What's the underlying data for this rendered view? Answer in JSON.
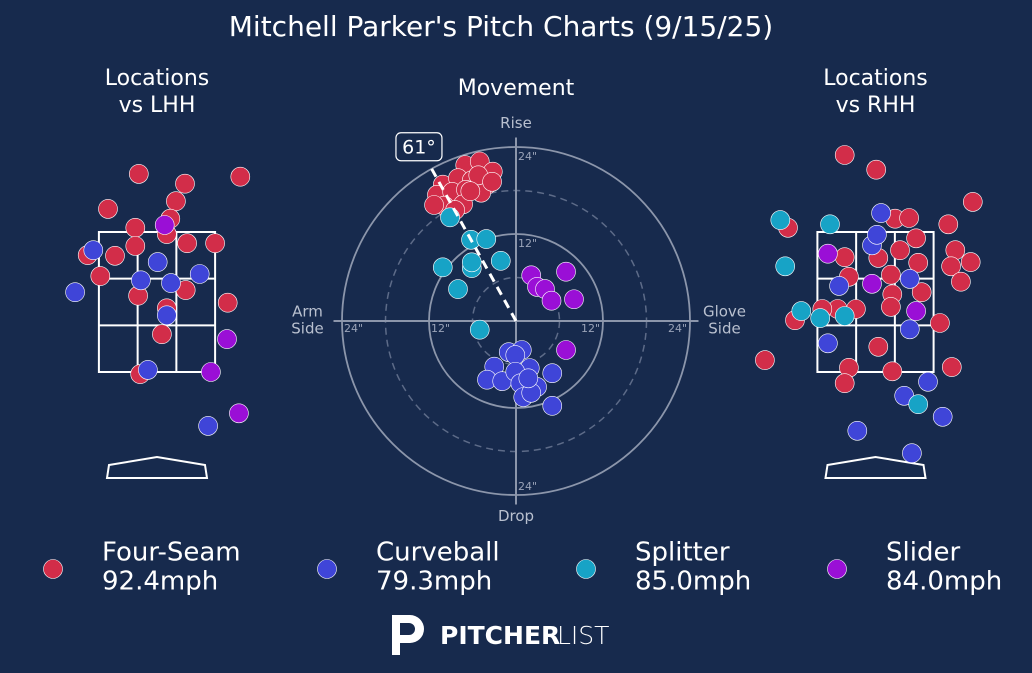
{
  "title": "Mitchell Parker's Pitch Charts (9/15/25)",
  "legend": [
    {
      "name": "Four-Seam",
      "color": "#d22d49",
      "velocity": 92.4,
      "velocity_label": "92.4mph"
    },
    {
      "name": "Curveball",
      "color": "#3f45d8",
      "velocity": 79.3,
      "velocity_label": "79.3mph"
    },
    {
      "name": "Splitter",
      "color": "#17a3c6",
      "velocity": 85.0,
      "velocity_label": "85.0mph"
    },
    {
      "name": "Slider",
      "color": "#9a0fd6",
      "velocity": 84.0,
      "velocity_label": "84.0mph"
    }
  ],
  "footer": {
    "logo_bold": "PITCHER",
    "logo_light": "LIST"
  },
  "chart_data": [
    {
      "type": "scatter",
      "title": [
        "Locations",
        "vs LHH"
      ],
      "strike_zone": true,
      "xlim": [
        -1.6,
        1.6
      ],
      "ylim": [
        0,
        5
      ],
      "series": [
        {
          "color": "#d22d49",
          "x": [
            -0.26,
            0.4,
            1.19,
            -0.7,
            0.27,
            0.19,
            -0.31,
            0.14,
            0.43,
            0.83,
            -0.31,
            -0.99,
            -0.6,
            -0.81,
            0.41,
            -0.27,
            1.01,
            0.14,
            0.07,
            -0.24
          ],
          "y": [
            4.33,
            4.19,
            4.29,
            3.83,
            3.94,
            3.69,
            3.56,
            3.47,
            3.34,
            3.34,
            3.3,
            3.17,
            3.16,
            2.87,
            2.67,
            2.59,
            2.49,
            2.41,
            2.04,
            1.47
          ]
        },
        {
          "color": "#3f45d8",
          "x": [
            -0.91,
            0.01,
            0.61,
            -0.23,
            0.2,
            -1.17,
            0.14,
            -0.13,
            0.73
          ],
          "y": [
            3.24,
            3.07,
            2.9,
            2.81,
            2.77,
            2.64,
            2.31,
            1.53,
            0.73
          ]
        },
        {
          "color": "#9a0fd6",
          "x": [
            0.11,
            1.0,
            0.77,
            1.17
          ],
          "y": [
            3.6,
            1.97,
            1.5,
            0.91
          ]
        }
      ]
    },
    {
      "type": "scatter",
      "title": [
        "Movement"
      ],
      "xlim": [
        -26,
        26
      ],
      "ylim": [
        -26,
        26
      ],
      "rings": [
        {
          "value": 12,
          "label": "12\""
        },
        {
          "value": 24,
          "label": "24\""
        }
      ],
      "top_label": "Rise",
      "bottom_label": "Drop",
      "left_label": [
        "Arm",
        "Side"
      ],
      "right_label": [
        "Glove",
        "Side"
      ],
      "arm_angle": 61,
      "arm_angle_label": "61°",
      "series": [
        {
          "color": "#d22d49",
          "x": [
            -7.0,
            -5.0,
            -3.2,
            -10.1,
            -8.0,
            -6.1,
            -4.0,
            -10.9,
            -8.8,
            -6.9,
            -4.8,
            -9.9,
            -7.3,
            -5.2,
            -3.3,
            -11.3,
            -8.4,
            -6.3
          ],
          "y": [
            21.5,
            22.0,
            20.6,
            18.8,
            19.7,
            19.4,
            18.8,
            17.4,
            17.8,
            18.1,
            17.7,
            15.9,
            16.1,
            20.1,
            19.2,
            16.0,
            15.3,
            17.9
          ]
        },
        {
          "color": "#17a3c6",
          "x": [
            -9.1,
            -6.2,
            -4.1,
            -10.1,
            -6.1,
            -2.1,
            -8.0,
            -5.0,
            -6.1
          ],
          "y": [
            14.3,
            11.2,
            11.3,
            7.4,
            7.3,
            8.3,
            4.4,
            -1.2,
            8.1
          ]
        },
        {
          "color": "#9a0fd6",
          "x": [
            2.1,
            6.9,
            2.9,
            4.0,
            4.9,
            8.0,
            6.9
          ],
          "y": [
            6.3,
            6.8,
            4.7,
            4.4,
            2.8,
            3.0,
            -4.0
          ]
        },
        {
          "color": "#3f45d8",
          "x": [
            -1.0,
            0.8,
            -0.1,
            -3.0,
            1.9,
            5.0,
            -4.0,
            -1.9,
            -0.1,
            0.6,
            2.9,
            1.0,
            2.1,
            5.0,
            1.7
          ],
          "y": [
            -4.3,
            -4.0,
            -4.7,
            -6.3,
            -6.5,
            -7.2,
            -8.1,
            -8.3,
            -7.0,
            -8.6,
            -9.1,
            -10.5,
            -9.9,
            -11.7,
            -7.9
          ]
        }
      ]
    },
    {
      "type": "scatter",
      "title": [
        "Locations",
        "vs RHH"
      ],
      "strike_zone": true,
      "xlim": [
        -1.6,
        1.6
      ],
      "ylim": [
        0,
        5
      ],
      "series": [
        {
          "color": "#d22d49",
          "x": [
            -0.44,
            0.01,
            1.39,
            1.04,
            -1.25,
            0.28,
            0.48,
            0.58,
            1.14,
            1.36,
            0.35,
            0.04,
            -0.44,
            0.61,
            1.08,
            0.22,
            -0.38,
            1.22,
            0.66,
            0.24,
            -0.28,
            -0.54,
            -0.76,
            0.22,
            -1.15,
            0.92,
            0.04,
            -0.38,
            0.24,
            1.09,
            -0.44,
            -1.58
          ],
          "y": [
            4.6,
            4.39,
            3.93,
            3.61,
            3.56,
            3.69,
            3.7,
            3.41,
            3.24,
            3.07,
            3.24,
            3.13,
            3.14,
            3.06,
            3.01,
            2.89,
            2.86,
            2.79,
            2.64,
            2.61,
            2.4,
            2.4,
            2.4,
            2.43,
            2.24,
            2.2,
            1.86,
            1.56,
            1.51,
            1.57,
            1.34,
            1.67
          ]
        },
        {
          "color": "#3f45d8",
          "x": [
            0.08,
            -0.05,
            0.02,
            -0.52,
            0.49,
            0.49,
            -0.68,
            0.75,
            0.41,
            0.96,
            -0.26,
            0.52
          ],
          "y": [
            3.77,
            3.31,
            3.46,
            2.73,
            2.83,
            2.11,
            1.91,
            1.36,
            1.16,
            0.86,
            0.66,
            0.34
          ]
        },
        {
          "color": "#17a3c6",
          "x": [
            -1.36,
            -0.65,
            -1.29,
            -1.06,
            -0.79,
            -0.44,
            0.61
          ],
          "y": [
            3.67,
            3.61,
            3.01,
            2.37,
            2.27,
            2.3,
            1.04
          ]
        },
        {
          "color": "#9a0fd6",
          "x": [
            -0.68,
            -0.05,
            0.58
          ],
          "y": [
            3.19,
            2.76,
            2.37
          ]
        }
      ]
    }
  ]
}
